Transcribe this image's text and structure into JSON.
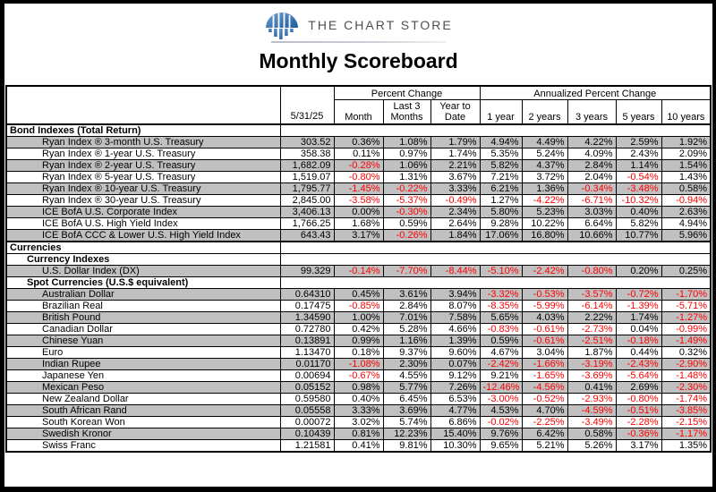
{
  "header": {
    "brand": "THE CHART STORE",
    "title": "Monthly Scoreboard"
  },
  "table": {
    "date_label": "5/31/25",
    "group_percent": "Percent Change",
    "group_annualized": "Annualized Percent Change",
    "columns": [
      "Month",
      "Last 3\nMonths",
      "Year to\nDate",
      "1 year",
      "2 years",
      "3 years",
      "5 years",
      "10 years"
    ],
    "colors": {
      "row_shade": "#c0c0c0",
      "negative": "#ff0000"
    },
    "rows": [
      {
        "type": "section",
        "level": 0,
        "label": "Bond Indexes (Total Return)"
      },
      {
        "type": "data",
        "shade": true,
        "name": "Ryan Index ® 3-month U.S. Treasury",
        "value": "303.52",
        "cells": [
          "0.36%",
          "1.08%",
          "1.79%",
          "4.94%",
          "4.49%",
          "4.22%",
          "2.59%",
          "1.92%"
        ]
      },
      {
        "type": "data",
        "shade": false,
        "name": "Ryan Index ® 1-year U.S. Treasury",
        "value": "358.38",
        "cells": [
          "0.11%",
          "0.97%",
          "1.74%",
          "5.35%",
          "5.24%",
          "4.09%",
          "2.43%",
          "2.09%"
        ]
      },
      {
        "type": "data",
        "shade": true,
        "name": "Ryan Index ® 2-year U.S. Treasury",
        "value": "1,682.09",
        "cells": [
          "-0.28%",
          "1.06%",
          "2.21%",
          "5.82%",
          "4.37%",
          "2.84%",
          "1.14%",
          "1.54%"
        ]
      },
      {
        "type": "data",
        "shade": false,
        "name": "Ryan Index ® 5-year U.S. Treasury",
        "value": "1,519.07",
        "cells": [
          "-0.80%",
          "1.31%",
          "3.67%",
          "7.21%",
          "3.72%",
          "2.04%",
          "-0.54%",
          "1.43%"
        ]
      },
      {
        "type": "data",
        "shade": true,
        "name": "Ryan Index ® 10-year U.S. Treasury",
        "value": "1,795.77",
        "cells": [
          "-1.45%",
          "-0.22%",
          "3.33%",
          "6.21%",
          "1.36%",
          "-0.34%",
          "-3.48%",
          "0.58%"
        ]
      },
      {
        "type": "data",
        "shade": false,
        "name": "Ryan Index ® 30-year U.S. Treasury",
        "value": "2,845.00",
        "cells": [
          "-3.58%",
          "-5.37%",
          "-0.49%",
          "1.27%",
          "-4.22%",
          "-6.71%",
          "-10.32%",
          "-0.94%"
        ]
      },
      {
        "type": "data",
        "shade": true,
        "name": "ICE BofA U.S. Corporate Index",
        "value": "3,406.13",
        "cells": [
          "0.00%",
          "-0.30%",
          "2.34%",
          "5.80%",
          "5.23%",
          "3.03%",
          "0.40%",
          "2.63%"
        ]
      },
      {
        "type": "data",
        "shade": false,
        "name": "ICE BofA U.S. High Yield Index",
        "value": "1,766.25",
        "cells": [
          "1.68%",
          "0.59%",
          "2.64%",
          "9.28%",
          "10.22%",
          "6.64%",
          "5.82%",
          "4.94%"
        ]
      },
      {
        "type": "data",
        "shade": true,
        "name": "ICE BofA CCC & Lower U.S. High Yield Index",
        "value": "643.43",
        "cells": [
          "3.17%",
          "-0.26%",
          "1.84%",
          "17.06%",
          "16.80%",
          "10.66%",
          "10.77%",
          "5.96%"
        ]
      },
      {
        "type": "section",
        "level": 0,
        "label": "Currencies"
      },
      {
        "type": "section",
        "level": 1,
        "label": "Currency Indexes"
      },
      {
        "type": "data",
        "shade": true,
        "name": "U.S. Dollar Index (DX)",
        "value": "99.329",
        "cells": [
          "-0.14%",
          "-7.70%",
          "-8.44%",
          "-5.10%",
          "-2.42%",
          "-0.80%",
          "0.20%",
          "0.25%"
        ]
      },
      {
        "type": "section",
        "level": 1,
        "label": "Spot Currencies (U.S.$ equivalent)"
      },
      {
        "type": "data",
        "shade": true,
        "name": "Australian Dollar",
        "value": "0.64310",
        "cells": [
          "0.45%",
          "3.61%",
          "3.94%",
          "-3.32%",
          "-0.53%",
          "-3.57%",
          "-0.72%",
          "-1.70%"
        ]
      },
      {
        "type": "data",
        "shade": false,
        "name": "Brazilian Real",
        "value": "0.17475",
        "cells": [
          "-0.85%",
          "2.84%",
          "8.07%",
          "-8.35%",
          "-5.99%",
          "-6.14%",
          "-1.39%",
          "-5.71%"
        ]
      },
      {
        "type": "data",
        "shade": true,
        "name": "British Pound",
        "value": "1.34590",
        "cells": [
          "1.00%",
          "7.01%",
          "7.58%",
          "5.65%",
          "4.03%",
          "2.22%",
          "1.74%",
          "-1.27%"
        ]
      },
      {
        "type": "data",
        "shade": false,
        "name": "Canadian Dollar",
        "value": "0.72780",
        "cells": [
          "0.42%",
          "5.28%",
          "4.66%",
          "-0.83%",
          "-0.61%",
          "-2.73%",
          "0.04%",
          "-0.99%"
        ]
      },
      {
        "type": "data",
        "shade": true,
        "name": "Chinese Yuan",
        "value": "0.13891",
        "cells": [
          "0.99%",
          "1.16%",
          "1.39%",
          "0.59%",
          "-0.61%",
          "-2.51%",
          "-0.18%",
          "-1.49%"
        ]
      },
      {
        "type": "data",
        "shade": false,
        "name": "Euro",
        "value": "1.13470",
        "cells": [
          "0.18%",
          "9.37%",
          "9.60%",
          "4.67%",
          "3.04%",
          "1.87%",
          "0.44%",
          "0.32%"
        ]
      },
      {
        "type": "data",
        "shade": true,
        "name": "Indian Rupee",
        "value": "0.01170",
        "cells": [
          "-1.08%",
          "2.30%",
          "0.07%",
          "-2.42%",
          "-1.66%",
          "-3.19%",
          "-2.43%",
          "-2.90%"
        ]
      },
      {
        "type": "data",
        "shade": false,
        "name": "Japanese Yen",
        "value": "0.00694",
        "cells": [
          "-0.67%",
          "4.55%",
          "9.12%",
          "9.21%",
          "-1.65%",
          "-3.69%",
          "-5.64%",
          "-1.48%"
        ]
      },
      {
        "type": "data",
        "shade": true,
        "name": "Mexican Peso",
        "value": "0.05152",
        "cells": [
          "0.98%",
          "5.77%",
          "7.26%",
          "-12.46%",
          "-4.56%",
          "0.41%",
          "2.69%",
          "-2.30%"
        ]
      },
      {
        "type": "data",
        "shade": false,
        "name": "New Zealand Dollar",
        "value": "0.59580",
        "cells": [
          "0.40%",
          "6.45%",
          "6.53%",
          "-3.00%",
          "-0.52%",
          "-2.93%",
          "-0.80%",
          "-1.74%"
        ]
      },
      {
        "type": "data",
        "shade": true,
        "name": "South African Rand",
        "value": "0.05558",
        "cells": [
          "3.33%",
          "3.69%",
          "4.77%",
          "4.53%",
          "4.70%",
          "-4.59%",
          "-0.51%",
          "-3.85%"
        ]
      },
      {
        "type": "data",
        "shade": false,
        "name": "South Korean Won",
        "value": "0.00072",
        "cells": [
          "3.02%",
          "5.74%",
          "6.86%",
          "-0.02%",
          "-2.25%",
          "-3.49%",
          "-2.28%",
          "-2.15%"
        ]
      },
      {
        "type": "data",
        "shade": true,
        "name": "Swedish Kronor",
        "value": "0.10439",
        "cells": [
          "0.81%",
          "12.23%",
          "15.40%",
          "9.76%",
          "6.42%",
          "0.58%",
          "-0.36%",
          "-1.17%"
        ]
      },
      {
        "type": "data",
        "shade": false,
        "name": "Swiss Franc",
        "value": "1.21581",
        "cells": [
          "0.41%",
          "9.81%",
          "10.30%",
          "9.65%",
          "5.21%",
          "5.26%",
          "3.17%",
          "1.35%"
        ]
      }
    ]
  }
}
